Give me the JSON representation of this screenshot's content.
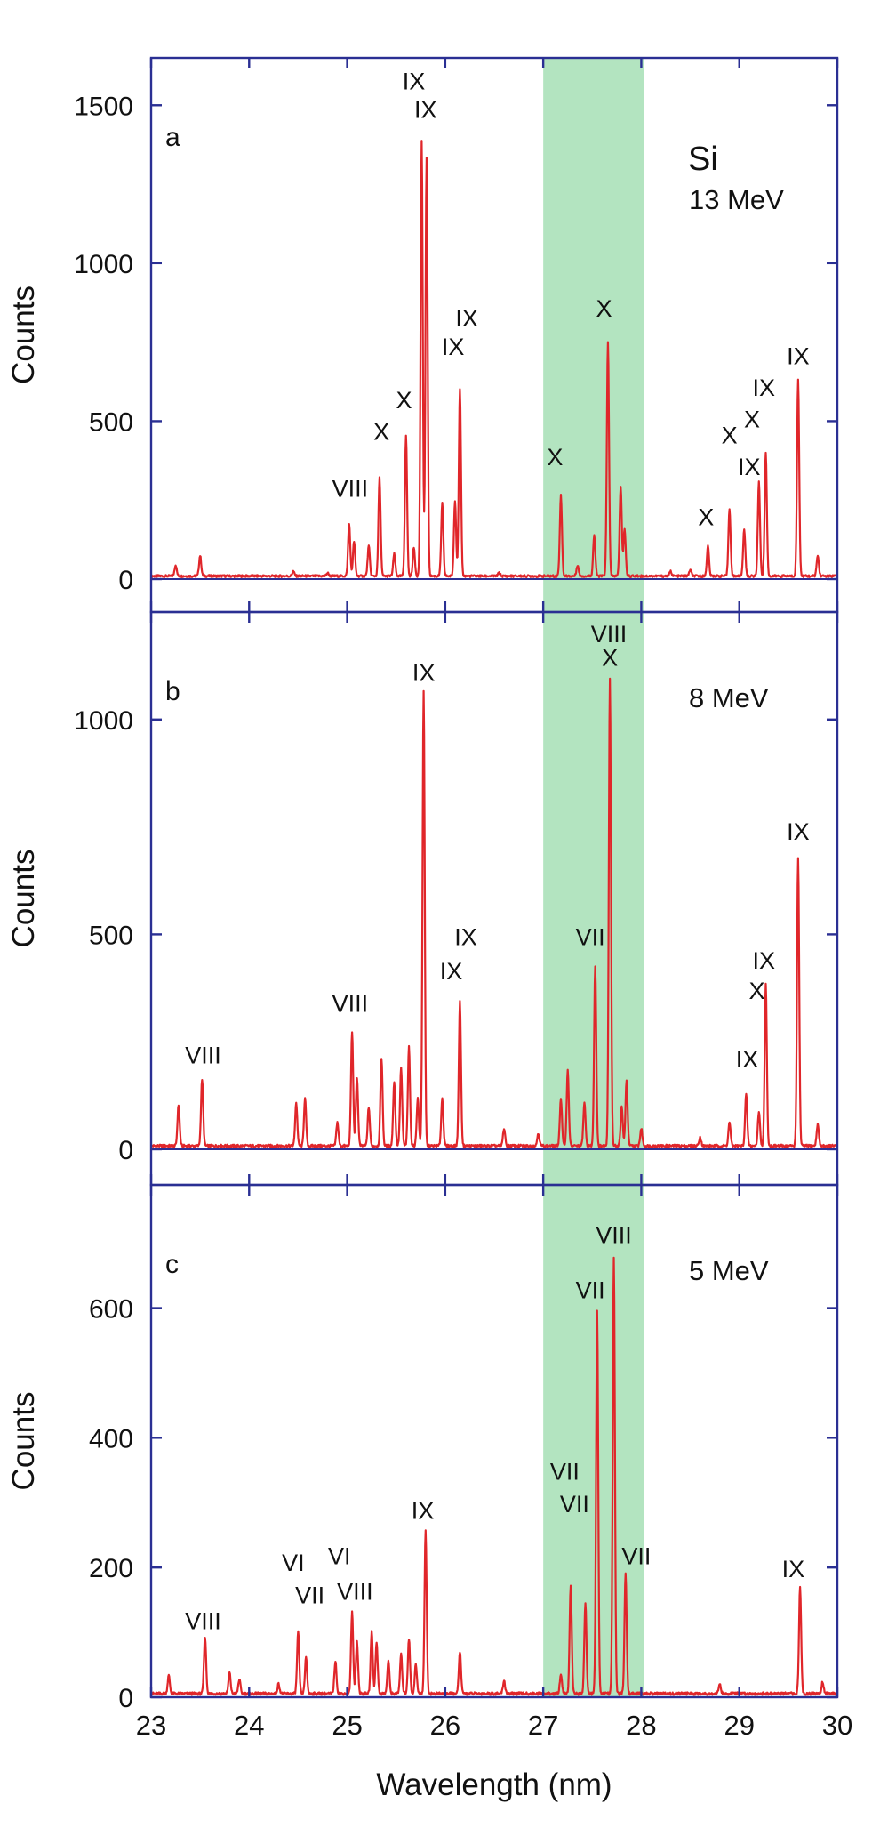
{
  "colors": {
    "frame": "#2a2f93",
    "spectrum": "#e0262a",
    "band": "#b3e4c0",
    "text": "#111111"
  },
  "chart_data": {
    "type": "line",
    "x_label": "Wavelength (nm)",
    "x_range": [
      23,
      30
    ],
    "x_ticks": [
      "23",
      "24",
      "25",
      "26",
      "27",
      "28",
      "29",
      "30"
    ],
    "highlight_band": [
      27,
      28.03
    ],
    "panels": [
      {
        "letter": "a",
        "element": "Si",
        "energy": "13 MeV",
        "ylabel": "Counts",
        "ylim": [
          0,
          1650
        ],
        "y_ticks": [
          0,
          500,
          1000,
          1500
        ],
        "y_tick_labels": [
          "0",
          "500",
          "1000",
          "1500"
        ],
        "peaks": [
          [
            23.25,
            35
          ],
          [
            23.5,
            65
          ],
          [
            24.45,
            15
          ],
          [
            24.8,
            10
          ],
          [
            25.02,
            165
          ],
          [
            25.07,
            110
          ],
          [
            25.22,
            95
          ],
          [
            25.33,
            310
          ],
          [
            25.48,
            70
          ],
          [
            25.6,
            445
          ],
          [
            25.68,
            90
          ],
          [
            25.76,
            1375
          ],
          [
            25.81,
            1325
          ],
          [
            25.97,
            230
          ],
          [
            26.1,
            240
          ],
          [
            26.15,
            590
          ],
          [
            26.55,
            10
          ],
          [
            27.18,
            255
          ],
          [
            27.35,
            35
          ],
          [
            27.52,
            130
          ],
          [
            27.66,
            740
          ],
          [
            27.79,
            285
          ],
          [
            27.83,
            150
          ],
          [
            28.3,
            15
          ],
          [
            28.5,
            20
          ],
          [
            28.68,
            95
          ],
          [
            28.9,
            215
          ],
          [
            29.05,
            150
          ],
          [
            29.2,
            300
          ],
          [
            29.27,
            390
          ],
          [
            29.6,
            620
          ],
          [
            29.8,
            65
          ]
        ],
        "ions": [
          {
            "x": 25.03,
            "count": 260,
            "label": "VIII"
          },
          {
            "x": 25.35,
            "count": 440,
            "label": "X"
          },
          {
            "x": 25.58,
            "count": 540,
            "label": "X"
          },
          {
            "x": 25.68,
            "count": 1550,
            "label": "IX"
          },
          {
            "x": 25.8,
            "count": 1460,
            "label": "IX"
          },
          {
            "x": 26.08,
            "count": 710,
            "label": "IX"
          },
          {
            "x": 26.22,
            "count": 800,
            "label": "IX"
          },
          {
            "x": 27.12,
            "count": 360,
            "label": "X"
          },
          {
            "x": 27.62,
            "count": 830,
            "label": "X"
          },
          {
            "x": 28.66,
            "count": 170,
            "label": "X"
          },
          {
            "x": 28.9,
            "count": 430,
            "label": "X"
          },
          {
            "x": 29.1,
            "count": 330,
            "label": "IX"
          },
          {
            "x": 29.13,
            "count": 480,
            "label": "X"
          },
          {
            "x": 29.25,
            "count": 580,
            "label": "IX"
          },
          {
            "x": 29.6,
            "count": 680,
            "label": "IX"
          }
        ]
      },
      {
        "letter": "b",
        "element": "",
        "energy": "8 MeV",
        "ylabel": "Counts",
        "ylim": [
          0,
          1250
        ],
        "y_ticks": [
          0,
          500,
          1000
        ],
        "y_tick_labels": [
          "0",
          "500",
          "1000"
        ],
        "peaks": [
          [
            23.28,
            95
          ],
          [
            23.52,
            155
          ],
          [
            24.48,
            100
          ],
          [
            24.57,
            110
          ],
          [
            24.9,
            55
          ],
          [
            25.05,
            265
          ],
          [
            25.1,
            160
          ],
          [
            25.22,
            90
          ],
          [
            25.35,
            205
          ],
          [
            25.48,
            150
          ],
          [
            25.55,
            180
          ],
          [
            25.63,
            230
          ],
          [
            25.72,
            110
          ],
          [
            25.78,
            1060
          ],
          [
            25.97,
            110
          ],
          [
            26.15,
            335
          ],
          [
            26.6,
            40
          ],
          [
            26.95,
            30
          ],
          [
            27.18,
            110
          ],
          [
            27.25,
            175
          ],
          [
            27.42,
            100
          ],
          [
            27.53,
            420
          ],
          [
            27.68,
            1090
          ],
          [
            27.8,
            90
          ],
          [
            27.85,
            150
          ],
          [
            28.0,
            40
          ],
          [
            28.6,
            20
          ],
          [
            28.9,
            55
          ],
          [
            29.07,
            120
          ],
          [
            29.2,
            80
          ],
          [
            29.27,
            375
          ],
          [
            29.6,
            670
          ],
          [
            29.8,
            50
          ]
        ],
        "ions": [
          {
            "x": 23.53,
            "count": 200,
            "label": "VIII"
          },
          {
            "x": 25.03,
            "count": 320,
            "label": "VIII"
          },
          {
            "x": 25.78,
            "count": 1090,
            "label": "IX"
          },
          {
            "x": 26.06,
            "count": 395,
            "label": "IX"
          },
          {
            "x": 26.21,
            "count": 475,
            "label": "IX"
          },
          {
            "x": 27.48,
            "count": 475,
            "label": "VII"
          },
          {
            "x": 27.68,
            "count": 1125,
            "label": "X"
          },
          {
            "x": 27.67,
            "count": 1180,
            "label": "VIII"
          },
          {
            "x": 29.08,
            "count": 190,
            "label": "IX"
          },
          {
            "x": 29.18,
            "count": 350,
            "label": "X"
          },
          {
            "x": 29.25,
            "count": 420,
            "label": "IX"
          },
          {
            "x": 29.6,
            "count": 720,
            "label": "IX"
          }
        ]
      },
      {
        "letter": "c",
        "element": "",
        "energy": "5 MeV",
        "ylabel": "Counts",
        "ylim": [
          0,
          790
        ],
        "y_ticks": [
          0,
          200,
          400,
          600
        ],
        "y_tick_labels": [
          "0",
          "200",
          "400",
          "600"
        ],
        "peaks": [
          [
            23.18,
            28
          ],
          [
            23.55,
            88
          ],
          [
            23.8,
            32
          ],
          [
            23.9,
            22
          ],
          [
            24.3,
            15
          ],
          [
            24.5,
            95
          ],
          [
            24.58,
            55
          ],
          [
            24.88,
            50
          ],
          [
            25.05,
            125
          ],
          [
            25.1,
            80
          ],
          [
            25.25,
            95
          ],
          [
            25.3,
            80
          ],
          [
            25.42,
            50
          ],
          [
            25.55,
            60
          ],
          [
            25.63,
            85
          ],
          [
            25.7,
            45
          ],
          [
            25.8,
            250
          ],
          [
            26.15,
            65
          ],
          [
            26.6,
            20
          ],
          [
            27.18,
            30
          ],
          [
            27.28,
            165
          ],
          [
            27.43,
            140
          ],
          [
            27.55,
            590
          ],
          [
            27.72,
            670
          ],
          [
            27.84,
            185
          ],
          [
            28.8,
            15
          ],
          [
            29.62,
            165
          ],
          [
            29.85,
            18
          ]
        ],
        "ions": [
          {
            "x": 23.53,
            "count": 105,
            "label": "VIII"
          },
          {
            "x": 24.45,
            "count": 195,
            "label": "VI"
          },
          {
            "x": 24.62,
            "count": 145,
            "label": "VII"
          },
          {
            "x": 24.92,
            "count": 205,
            "label": "VI"
          },
          {
            "x": 25.08,
            "count": 150,
            "label": "VIII"
          },
          {
            "x": 25.77,
            "count": 275,
            "label": "IX"
          },
          {
            "x": 27.22,
            "count": 335,
            "label": "VII"
          },
          {
            "x": 27.32,
            "count": 285,
            "label": "VII"
          },
          {
            "x": 27.48,
            "count": 615,
            "label": "VII"
          },
          {
            "x": 27.72,
            "count": 700,
            "label": "VIII"
          },
          {
            "x": 27.95,
            "count": 205,
            "label": "VII"
          },
          {
            "x": 29.55,
            "count": 185,
            "label": "IX"
          }
        ]
      }
    ]
  }
}
